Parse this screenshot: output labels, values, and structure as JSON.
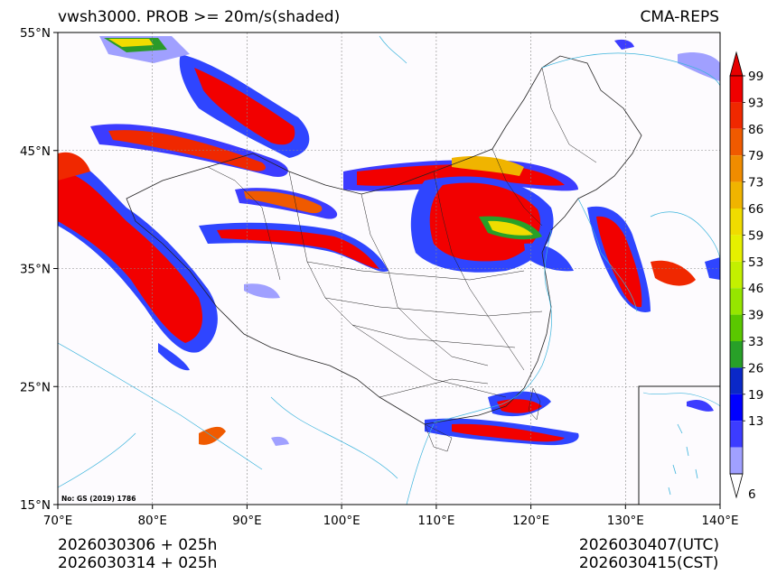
{
  "header": {
    "title_left": "vwsh3000. PROB >= 20m/s(shaded)",
    "title_right": "CMA-REPS"
  },
  "axes": {
    "lon_labels": [
      "70°E",
      "80°E",
      "90°E",
      "100°E",
      "110°E",
      "120°E",
      "130°E",
      "140°E"
    ],
    "lat_labels": [
      "55°N",
      "45°N",
      "35°N",
      "25°N",
      "15°N"
    ]
  },
  "map_note": "No: GS (2019) 1786",
  "colorbar": {
    "labels": [
      "99",
      "93",
      "86",
      "79",
      "73",
      "66",
      "59",
      "53",
      "46",
      "39",
      "33",
      "26",
      "19",
      "13",
      "6"
    ],
    "colors": [
      "#f00000",
      "#f02800",
      "#f05a00",
      "#f08c00",
      "#f0b400",
      "#f0dc00",
      "#e6f000",
      "#c3f000",
      "#96e600",
      "#5ac800",
      "#28a028",
      "#0a28c8",
      "#0000ff",
      "#3c3cff",
      "#a0a0ff"
    ],
    "over_color": "#e60000",
    "under_color": "#ffffff"
  },
  "footer": {
    "left_line1": "2026030306  +  025h",
    "left_line2": "2026030314  +  025h",
    "right_line1": "2026030407(UTC)",
    "right_line2": "2026030415(CST)"
  }
}
